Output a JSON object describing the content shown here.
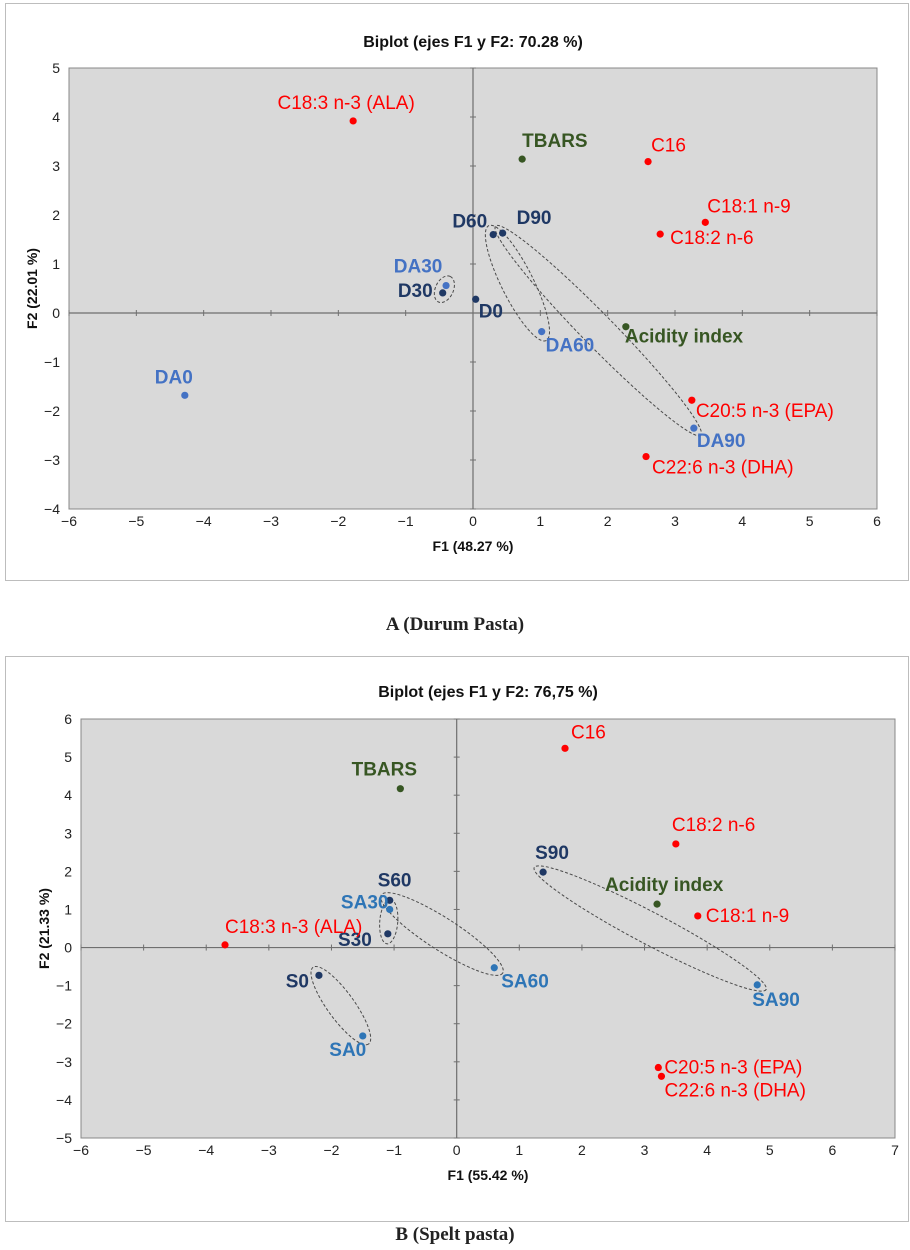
{
  "chart_data": [
    {
      "type": "scatter",
      "title": "Biplot (ejes F1 y F2: 70.28 %)",
      "xlabel": "F1 (48.27 %)",
      "ylabel": "F2 (22.01 %)",
      "xlim": [
        -6,
        6
      ],
      "ylim": [
        -4,
        5
      ],
      "xticks": [
        -6,
        -5,
        -4,
        -3,
        -2,
        -1,
        0,
        1,
        2,
        3,
        4,
        5,
        6
      ],
      "yticks": [
        -4,
        -3,
        -2,
        -1,
        0,
        1,
        2,
        3,
        4,
        5
      ],
      "caption": "A (Durum Pasta)",
      "points": [
        {
          "label": "C18:3 n-3 (ALA)",
          "x": -1.78,
          "y": 3.92,
          "color": "#ff0000",
          "ldx": -7,
          "ldy": -12,
          "anchor": "middle",
          "bold": false
        },
        {
          "label": "TBARS",
          "x": 0.73,
          "y": 3.14,
          "color": "#375623",
          "ldx": 0,
          "ldy": -12,
          "anchor": "start",
          "bold": true
        },
        {
          "label": "C16",
          "x": 2.6,
          "y": 3.09,
          "color": "#ff0000",
          "ldx": 3,
          "ldy": -10,
          "anchor": "start",
          "bold": false
        },
        {
          "label": "C18:1 n-9",
          "x": 3.45,
          "y": 1.85,
          "color": "#ff0000",
          "ldx": 2,
          "ldy": -10,
          "anchor": "start",
          "bold": false
        },
        {
          "label": "C18:2 n-6",
          "x": 2.78,
          "y": 1.61,
          "color": "#ff0000",
          "ldx": 10,
          "ldy": 10,
          "anchor": "start",
          "bold": false
        },
        {
          "label": "D60",
          "x": 0.3,
          "y": 1.6,
          "color": "#1f3864",
          "ldx": -6,
          "ldy": -7,
          "anchor": "end",
          "bold": true
        },
        {
          "label": "D90",
          "x": 0.44,
          "y": 1.63,
          "color": "#1f3864",
          "ldx": 14,
          "ldy": -9,
          "anchor": "start",
          "bold": true
        },
        {
          "label": "DA30",
          "x": -0.4,
          "y": 0.56,
          "color": "#4472c4",
          "ldx": -28,
          "ldy": -13,
          "anchor": "middle",
          "bold": true
        },
        {
          "label": "D30",
          "x": -0.45,
          "y": 0.41,
          "color": "#1f3864",
          "ldx": -10,
          "ldy": 4,
          "anchor": "end",
          "bold": true
        },
        {
          "label": "D0",
          "x": 0.04,
          "y": 0.28,
          "color": "#1f3864",
          "ldx": 3,
          "ldy": 18,
          "anchor": "start",
          "bold": true
        },
        {
          "label": "DA60",
          "x": 1.02,
          "y": -0.38,
          "color": "#4472c4",
          "ldx": 4,
          "ldy": 20,
          "anchor": "start",
          "bold": true
        },
        {
          "label": "Acidity index",
          "x": 2.27,
          "y": -0.28,
          "color": "#375623",
          "ldx": -1,
          "ldy": 16,
          "anchor": "start",
          "bold": true
        },
        {
          "label": "DA0",
          "x": -4.28,
          "y": -1.68,
          "color": "#4472c4",
          "ldx": -11,
          "ldy": -12,
          "anchor": "middle",
          "bold": true
        },
        {
          "label": "C20:5 n-3 (EPA)",
          "x": 3.25,
          "y": -1.78,
          "color": "#ff0000",
          "ldx": 4,
          "ldy": 17,
          "anchor": "start",
          "bold": false
        },
        {
          "label": "DA90",
          "x": 3.28,
          "y": -2.35,
          "color": "#4472c4",
          "ldx": 3,
          "ldy": 19,
          "anchor": "start",
          "bold": true
        },
        {
          "label": "C22:6 n-3 (DHA)",
          "x": 2.57,
          "y": -2.93,
          "color": "#ff0000",
          "ldx": 6,
          "ldy": 17,
          "anchor": "start",
          "bold": false
        }
      ],
      "groups": [
        {
          "x1": -0.45,
          "y1": 0.41,
          "x2": -0.4,
          "y2": 0.56
        },
        {
          "x1": 0.3,
          "y1": 1.6,
          "x2": 1.02,
          "y2": -0.38
        },
        {
          "x1": 0.44,
          "y1": 1.63,
          "x2": 3.28,
          "y2": -2.35
        }
      ]
    },
    {
      "type": "scatter",
      "title": "Biplot (ejes F1 y F2: 76,75 %)",
      "xlabel": "F1 (55.42 %)",
      "ylabel": "F2 (21.33 %)",
      "xlim": [
        -6,
        7
      ],
      "ylim": [
        -5,
        6
      ],
      "xticks": [
        -6,
        -5,
        -4,
        -3,
        -2,
        -1,
        0,
        1,
        2,
        3,
        4,
        5,
        6,
        7
      ],
      "yticks": [
        -5,
        -4,
        -3,
        -2,
        -1,
        0,
        1,
        2,
        3,
        4,
        5,
        6
      ],
      "caption": "B (Spelt pasta)",
      "points": [
        {
          "label": "C16",
          "x": 1.73,
          "y": 5.23,
          "color": "#ff0000",
          "ldx": 6,
          "ldy": -10,
          "anchor": "start",
          "bold": false
        },
        {
          "label": "TBARS",
          "x": -0.9,
          "y": 4.17,
          "color": "#375623",
          "ldx": -16,
          "ldy": -13,
          "anchor": "middle",
          "bold": true
        },
        {
          "label": "C18:2 n-6",
          "x": 3.5,
          "y": 2.72,
          "color": "#ff0000",
          "ldx": -4,
          "ldy": -13,
          "anchor": "start",
          "bold": false
        },
        {
          "label": "S90",
          "x": 1.38,
          "y": 1.98,
          "color": "#1f3864",
          "ldx": -8,
          "ldy": -13,
          "anchor": "start",
          "bold": true
        },
        {
          "label": "Acidity index",
          "x": 3.2,
          "y": 1.14,
          "color": "#375623",
          "ldx": -52,
          "ldy": -13,
          "anchor": "start",
          "bold": true
        },
        {
          "label": "C18:1 n-9",
          "x": 3.85,
          "y": 0.83,
          "color": "#ff0000",
          "ldx": 8,
          "ldy": 6,
          "anchor": "start",
          "bold": false
        },
        {
          "label": "S60",
          "x": -1.07,
          "y": 1.24,
          "color": "#1f3864",
          "ldx": -12,
          "ldy": -14,
          "anchor": "start",
          "bold": true
        },
        {
          "label": "SA30",
          "x": -1.07,
          "y": 1.0,
          "color": "#2e75b6",
          "ldx": -25,
          "ldy": -1,
          "anchor": "middle",
          "bold": true
        },
        {
          "label": "S30",
          "x": -1.1,
          "y": 0.36,
          "color": "#1f3864",
          "ldx": -16,
          "ldy": 12,
          "anchor": "end",
          "bold": true
        },
        {
          "label": "C18:3 n-3 (ALA)",
          "x": -3.7,
          "y": 0.07,
          "color": "#ff0000",
          "ldx": 0,
          "ldy": -12,
          "anchor": "start",
          "bold": false
        },
        {
          "label": "S0",
          "x": -2.2,
          "y": -0.73,
          "color": "#1f3864",
          "ldx": -10,
          "ldy": 12,
          "anchor": "end",
          "bold": true
        },
        {
          "label": "SA60",
          "x": 0.6,
          "y": -0.53,
          "color": "#2e75b6",
          "ldx": 7,
          "ldy": 20,
          "anchor": "start",
          "bold": true
        },
        {
          "label": "SA90",
          "x": 4.8,
          "y": -0.98,
          "color": "#2e75b6",
          "ldx": -5,
          "ldy": 21,
          "anchor": "start",
          "bold": true
        },
        {
          "label": "SA0",
          "x": -1.5,
          "y": -2.32,
          "color": "#2e75b6",
          "ldx": -15,
          "ldy": 20,
          "anchor": "middle",
          "bold": true
        },
        {
          "label": "C20:5 n-3 (EPA)",
          "x": 3.22,
          "y": -3.15,
          "color": "#ff0000",
          "ldx": 6,
          "ldy": 6,
          "anchor": "start",
          "bold": false
        },
        {
          "label": "C22:6 n-3 (DHA)",
          "x": 3.27,
          "y": -3.38,
          "color": "#ff0000",
          "ldx": 3,
          "ldy": 20,
          "anchor": "start",
          "bold": false
        }
      ],
      "groups": [
        {
          "x1": -2.2,
          "y1": -0.73,
          "x2": -1.5,
          "y2": -2.32
        },
        {
          "x1": -1.1,
          "y1": 0.36,
          "x2": -1.07,
          "y2": 1.0
        },
        {
          "x1": -1.07,
          "y1": 1.24,
          "x2": 0.6,
          "y2": -0.53
        },
        {
          "x1": 1.38,
          "y1": 1.98,
          "x2": 4.8,
          "y2": -0.98
        }
      ]
    }
  ]
}
